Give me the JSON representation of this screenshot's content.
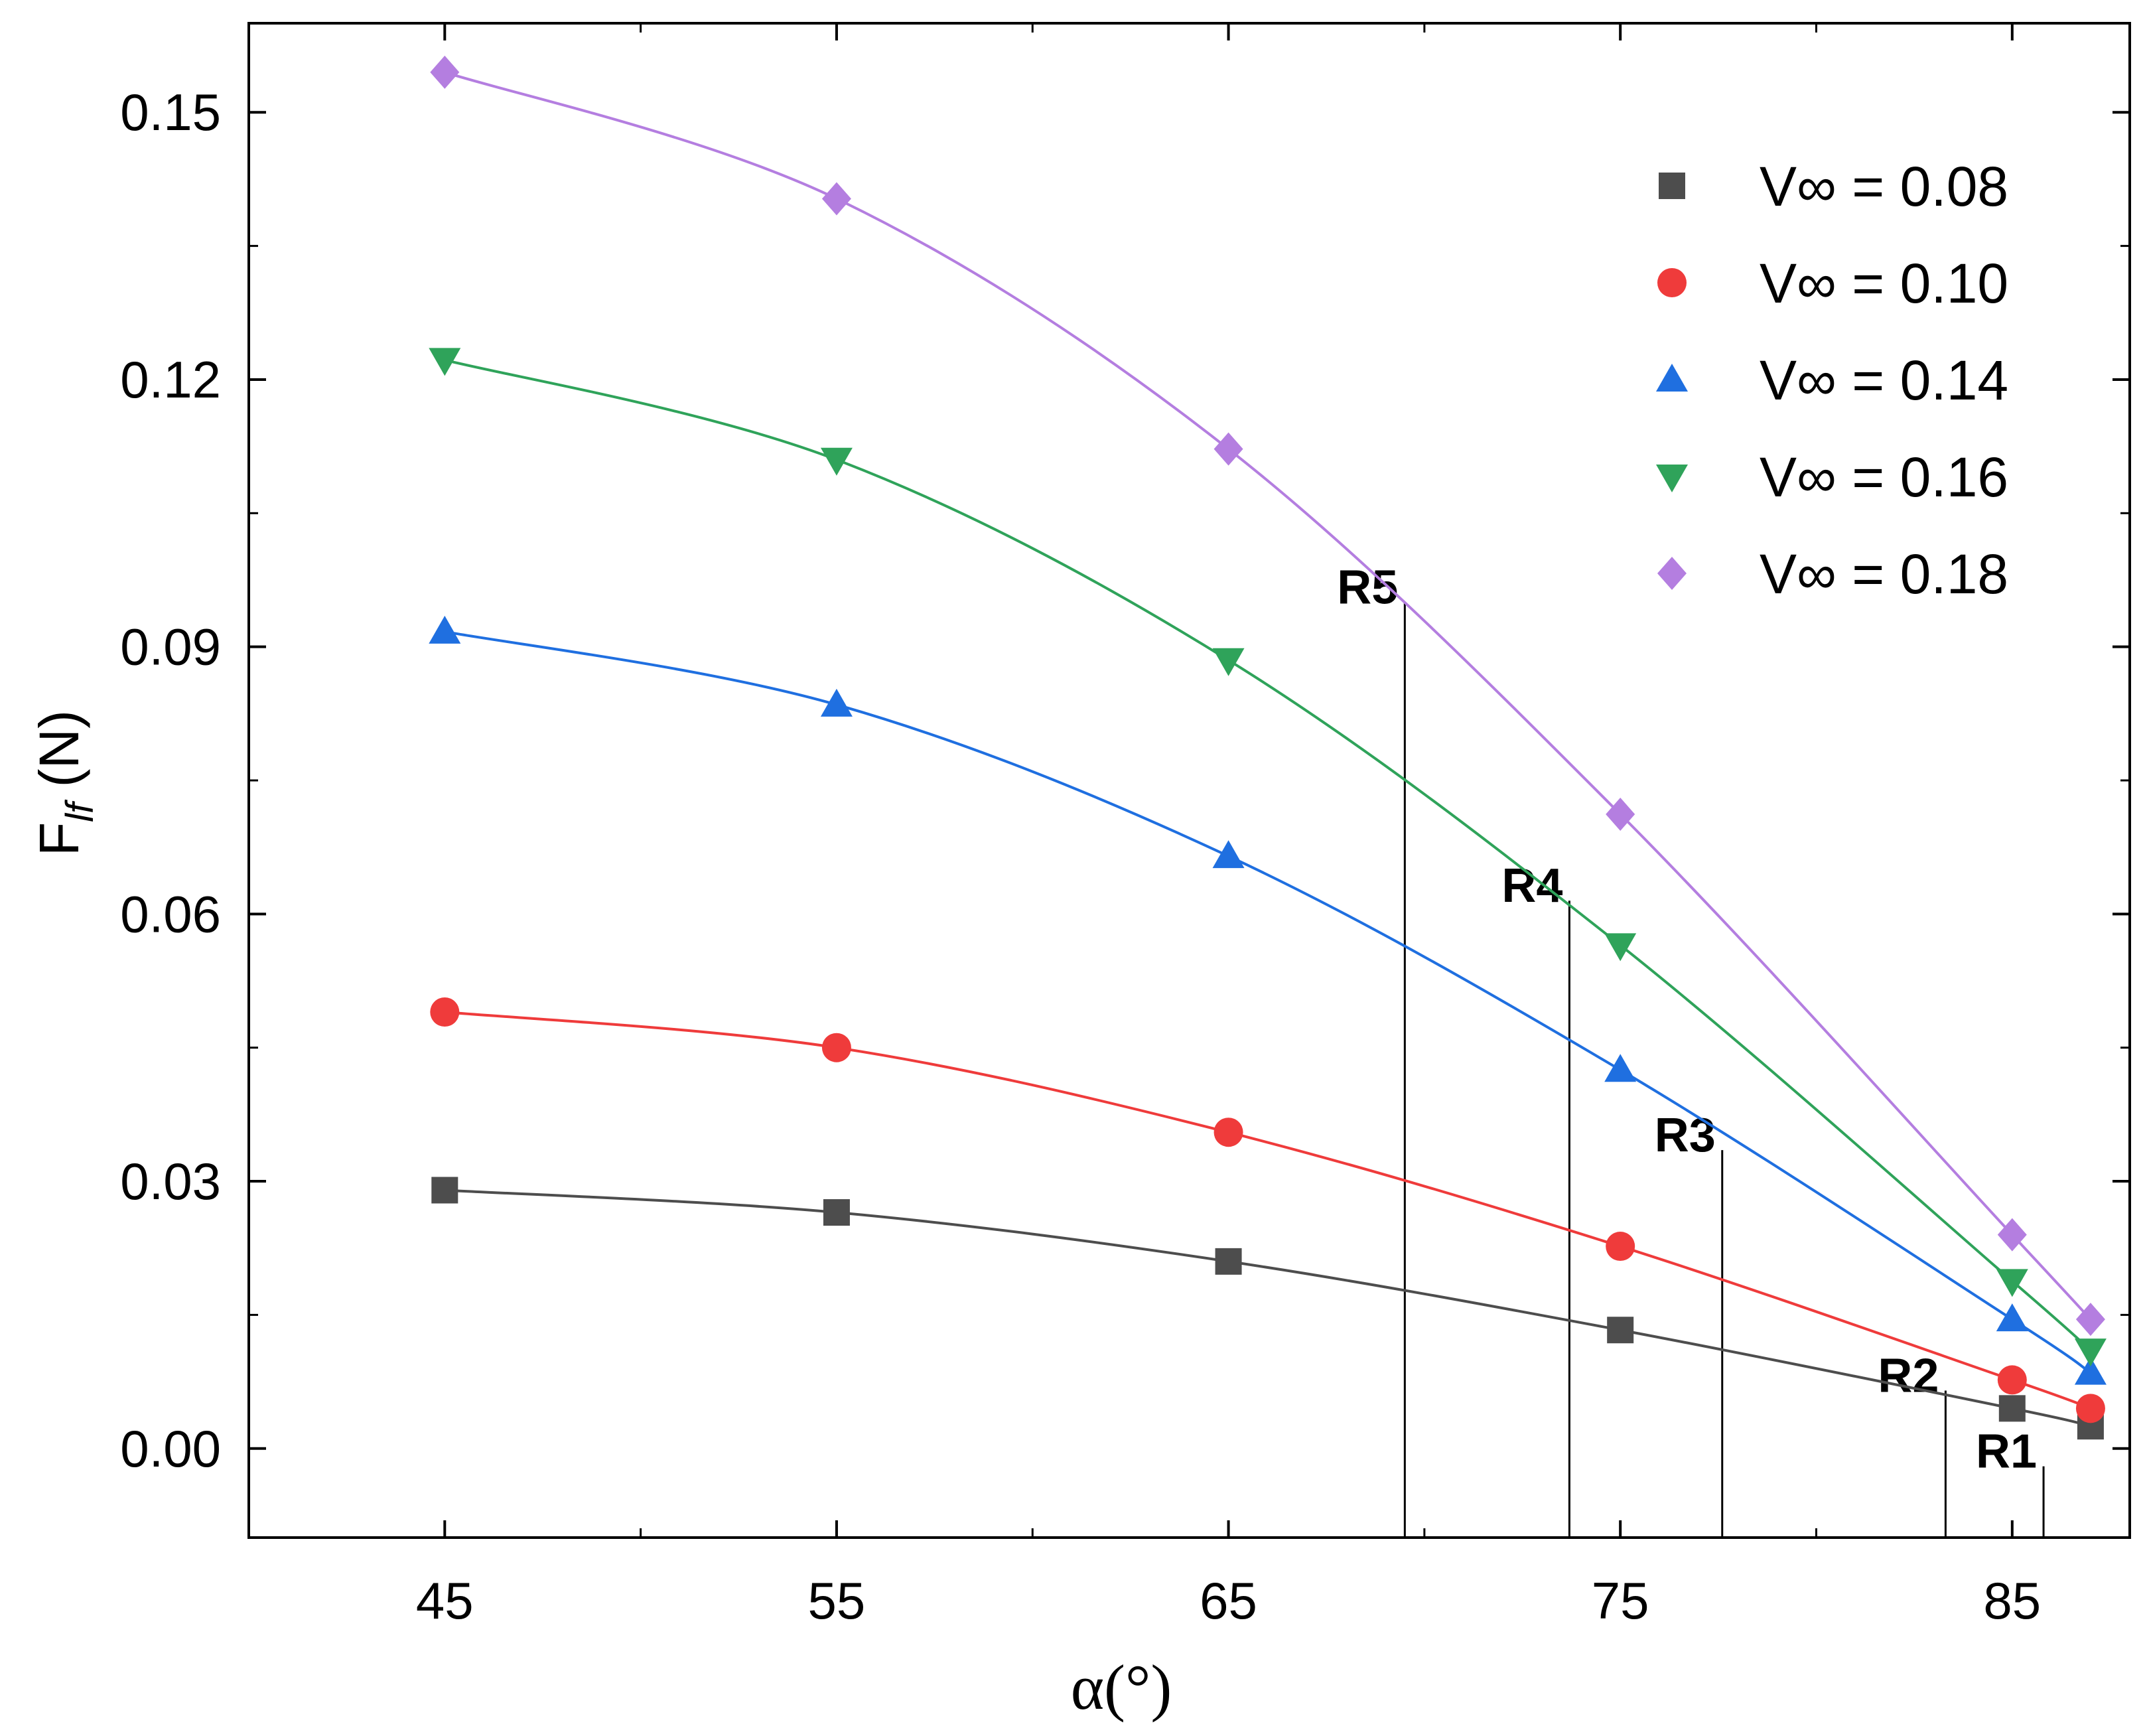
{
  "chart_data": {
    "type": "line",
    "title": "",
    "xlabel": "α(°)",
    "ylabel": {
      "main": "F",
      "subscript": "lf",
      "unit": " (N)"
    },
    "xlim": [
      40,
      88
    ],
    "ylim": [
      -0.01,
      0.16
    ],
    "x_ticks": [
      45,
      55,
      65,
      75,
      85
    ],
    "x_tick_labels": [
      "45",
      "55",
      "65",
      "75",
      "85"
    ],
    "x_minor_ticks": [
      50,
      60,
      70,
      80
    ],
    "y_ticks": [
      0.0,
      0.03,
      0.06,
      0.09,
      0.12,
      0.15
    ],
    "y_tick_labels": [
      "0.00",
      "0.03",
      "0.06",
      "0.09",
      "0.12",
      "0.15"
    ],
    "y_minor_ticks": [
      0.015,
      0.045,
      0.075,
      0.105,
      0.135
    ],
    "grid": false,
    "legend_position": "top-right",
    "x": [
      45,
      55,
      65,
      75,
      85,
      87
    ],
    "series": [
      {
        "name": "V∞ = 0.08",
        "label": "V∞ = 0.08",
        "color": "#4d4d4d",
        "marker": "square",
        "values": [
          0.029,
          0.0265,
          0.021,
          0.0133,
          0.0045,
          0.0025
        ]
      },
      {
        "name": "V∞ = 0.10",
        "label": "V∞ = 0.10",
        "color": "#ef3b3b",
        "marker": "circle",
        "values": [
          0.049,
          0.045,
          0.0355,
          0.0227,
          0.0077,
          0.0045
        ]
      },
      {
        "name": "V∞ = 0.14",
        "label": "V∞ = 0.14",
        "color": "#1f6fe0",
        "marker": "triangle-up",
        "values": [
          0.0917,
          0.0835,
          0.0665,
          0.0425,
          0.0145,
          0.0085
        ]
      },
      {
        "name": "V∞ = 0.16",
        "label": "V∞ = 0.16",
        "color": "#2fa35a",
        "marker": "triangle-down",
        "values": [
          0.1222,
          0.111,
          0.0885,
          0.0565,
          0.0188,
          0.011
        ]
      },
      {
        "name": "V∞ = 0.18",
        "label": "V∞ = 0.18",
        "color": "#b47ee0",
        "marker": "diamond",
        "values": [
          0.1545,
          0.1403,
          0.1122,
          0.0712,
          0.024,
          0.0145
        ]
      }
    ],
    "annotations": [
      {
        "text": "R1",
        "x": 85.8,
        "y_top": -0.002
      },
      {
        "text": "R2",
        "x": 83.3,
        "y_top": 0.0065
      },
      {
        "text": "R3",
        "x": 77.6,
        "y_top": 0.0335
      },
      {
        "text": "R4",
        "x": 73.7,
        "y_top": 0.0615
      },
      {
        "text": "R5",
        "x": 69.5,
        "y_top": 0.095
      }
    ]
  }
}
